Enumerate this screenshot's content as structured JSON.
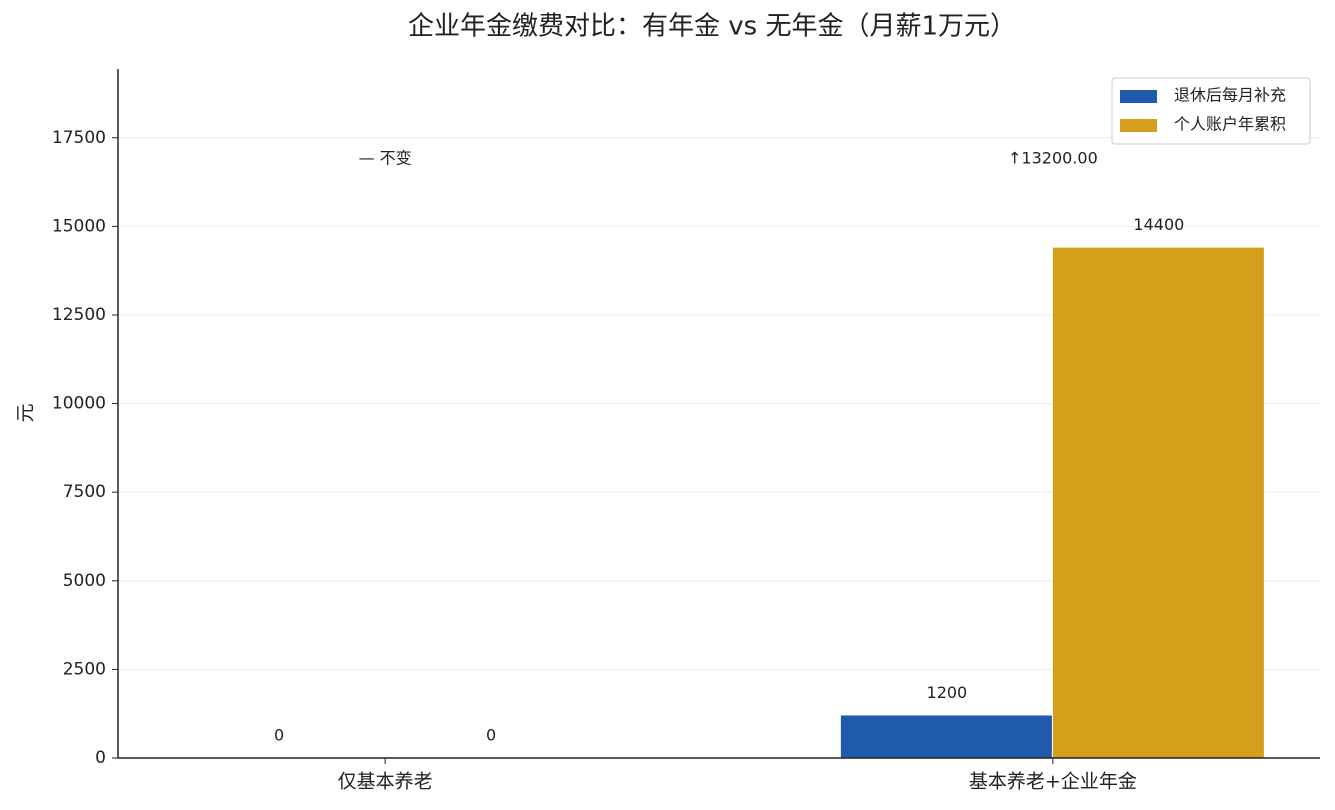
{
  "chart_data": {
    "type": "bar",
    "title": "企业年金缴费对比：有年金 vs 无年金（月薪1万元）",
    "y_label": "元",
    "categories": [
      "仅基本养老",
      "基本养老+企业年金"
    ],
    "series": [
      {
        "name": "退休后每月补充",
        "color": "#1f5aad",
        "values": [
          0,
          1200
        ]
      },
      {
        "name": "个人账户年累积",
        "color": "#d4a01c",
        "values": [
          0,
          14400
        ]
      }
    ],
    "annotations": [
      "— 不变",
      "↑13200.00"
    ],
    "annotation_colors": [
      "#888888",
      "#2eaa5c"
    ],
    "ylim": [
      0,
      19440
    ],
    "yticks": [
      0,
      2500,
      5000,
      7500,
      10000,
      12500,
      15000,
      17500
    ],
    "grid": true,
    "legend": "upper right"
  }
}
